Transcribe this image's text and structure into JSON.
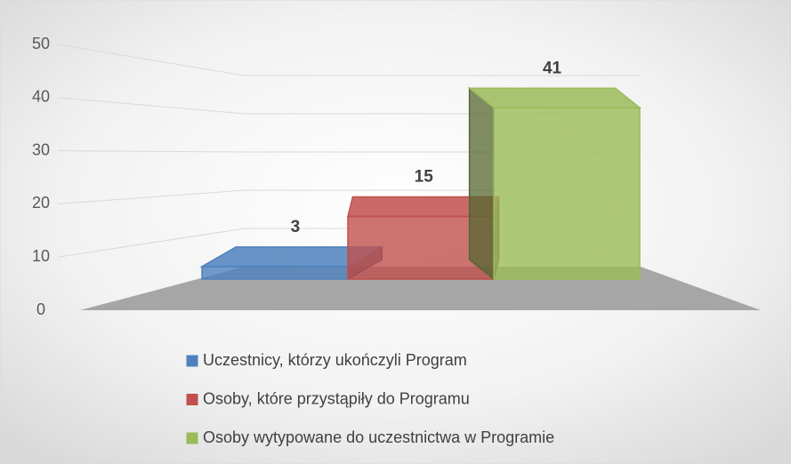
{
  "chart_data": {
    "type": "bar3d",
    "categories": [
      null
    ],
    "series": [
      {
        "name": "Uczestnicy, którzy ukończyli Program",
        "color": "#4f81bd",
        "values": [
          3
        ]
      },
      {
        "name": "Osoby, które przystąpiły do Programu",
        "color": "#c0504d",
        "values": [
          15
        ]
      },
      {
        "name": "Osoby wytypowane do uczestnictwa w Programie",
        "color": "#9bbb59",
        "values": [
          41
        ]
      }
    ],
    "ylim": [
      0,
      50
    ],
    "yticks": [
      0,
      10,
      20,
      30,
      40,
      50
    ],
    "grid": true,
    "legend": "bottom"
  }
}
